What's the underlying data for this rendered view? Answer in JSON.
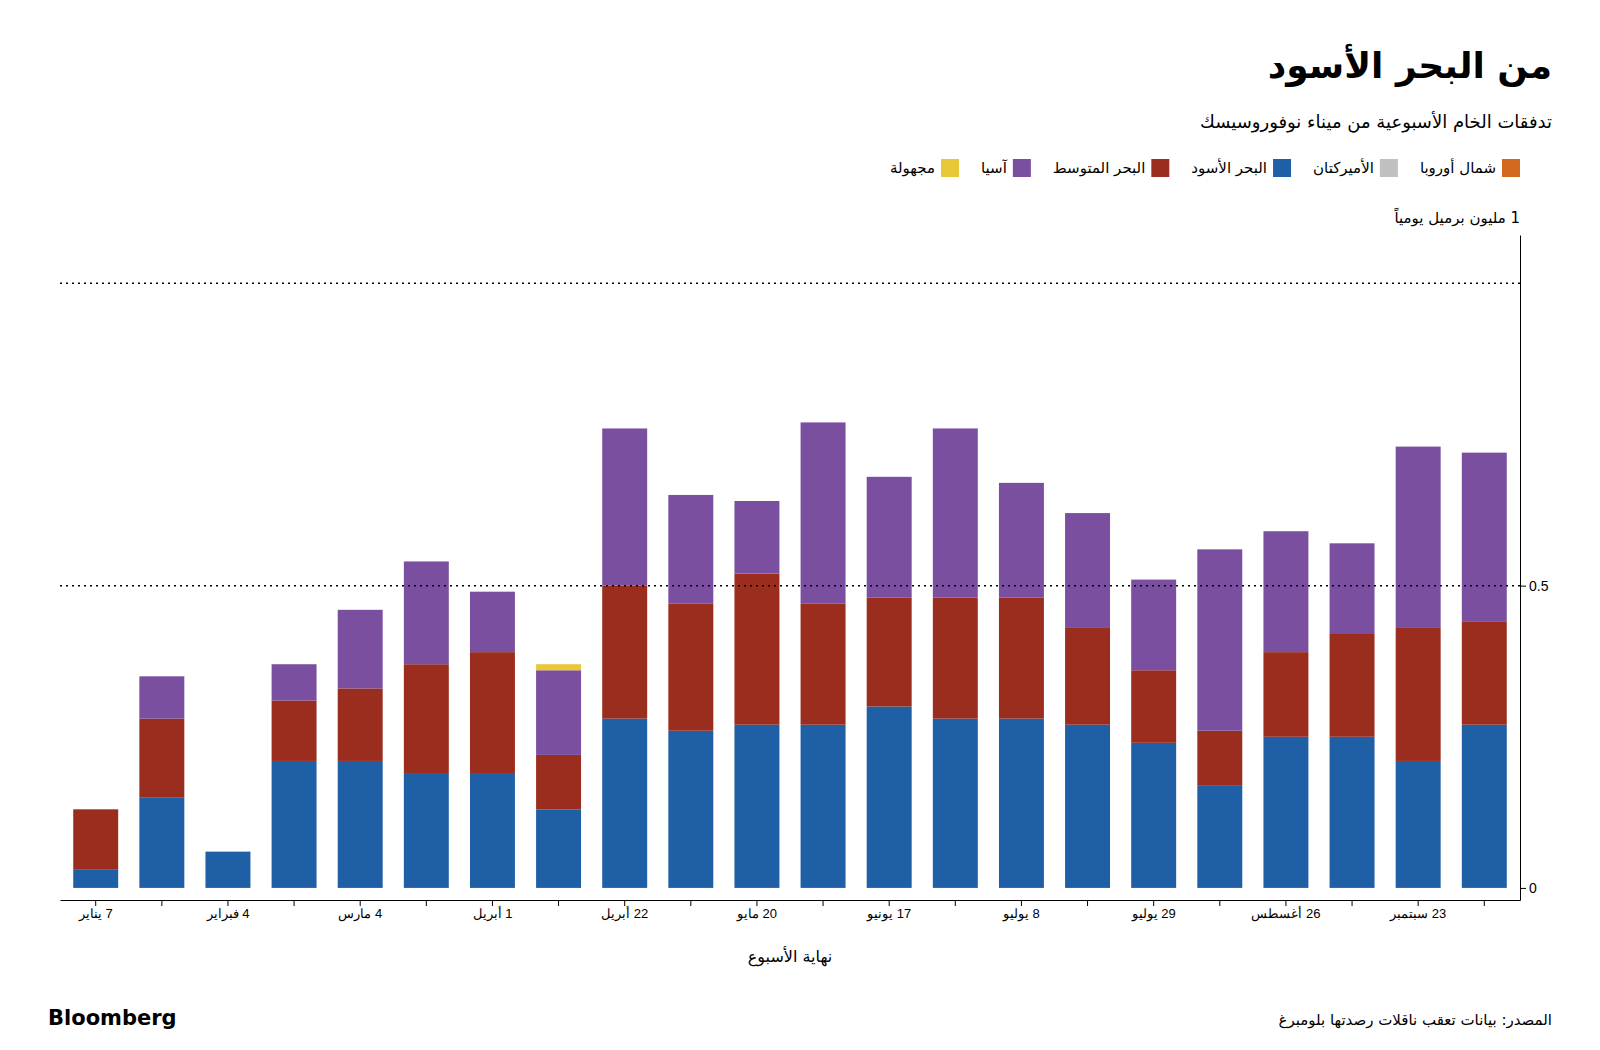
{
  "chart_data": {
    "type": "bar",
    "stacked": true,
    "title": "من البحر الأسود",
    "subtitle": "تدفقات الخام الأسبوعية من ميناء نوفوروسيسك",
    "x_label": "نهاية الأسبوع",
    "y_label": "1 مليون برميل يومياً",
    "annotations": [
      "Bloomberg",
      "المصدر: بيانات تعقب ناقلات رصدتها بلومبرغ"
    ],
    "categories": [
      "7 يناير",
      null,
      "4 فبراير",
      null,
      "4 مارس",
      null,
      "1 أبريل",
      null,
      "22 أبريل",
      null,
      "20 مايو",
      null,
      "17 يونيو",
      null,
      "8 يوليو",
      null,
      "29 يوليو",
      null,
      "26 أغسطس",
      null,
      "23 سبتمبر",
      null
    ],
    "series": [
      {
        "name": "شمال أوروبا",
        "color": "#D2691E",
        "values": [
          0,
          0,
          0,
          0,
          0,
          0,
          0,
          0,
          0,
          0,
          0,
          0,
          0,
          0,
          0,
          0,
          0,
          0,
          0,
          0,
          0,
          0
        ]
      },
      {
        "name": "الأميركتان",
        "color": "#C0C0C0",
        "values": [
          0,
          0,
          0,
          0,
          0,
          0,
          0,
          0,
          0,
          0,
          0,
          0,
          0,
          0,
          0,
          0,
          0,
          0,
          0,
          0,
          0,
          0
        ]
      },
      {
        "name": "البحر الأسود",
        "color": "#1F5FA6",
        "values": [
          0.03,
          0.15,
          0.06,
          0.21,
          0.21,
          0.19,
          0.19,
          0.13,
          0.28,
          0.26,
          0.27,
          0.27,
          0.3,
          0.28,
          0.28,
          0.27,
          0.24,
          0.17,
          0.25,
          0.25,
          0.21,
          0.27
        ]
      },
      {
        "name": "البحر المتوسط",
        "color": "#9B2D1F",
        "values": [
          0.1,
          0.13,
          0.0,
          0.1,
          0.12,
          0.18,
          0.2,
          0.09,
          0.22,
          0.21,
          0.25,
          0.2,
          0.18,
          0.2,
          0.2,
          0.16,
          0.12,
          0.09,
          0.14,
          0.17,
          0.22,
          0.17
        ]
      },
      {
        "name": "آسيا",
        "color": "#7B4FA0",
        "values": [
          0,
          0.07,
          0,
          0.06,
          0.13,
          0.17,
          0.1,
          0.14,
          0.26,
          0.18,
          0.12,
          0.3,
          0.2,
          0.28,
          0.19,
          0.19,
          0.15,
          0.3,
          0.2,
          0.15,
          0.3,
          0.28
        ]
      },
      {
        "name": "مجهولة",
        "color": "#E8C835",
        "values": [
          0,
          0,
          0,
          0,
          0,
          0,
          0,
          0.01,
          0,
          0,
          0,
          0,
          0,
          0,
          0,
          0,
          0,
          0,
          0,
          0,
          0,
          0
        ]
      }
    ],
    "reference_lines": [
      1.0,
      0.5
    ],
    "ylim": [
      -0.02,
      1.08
    ],
    "yticks": [
      0,
      0.5
    ],
    "grid": false,
    "legend": "top-right"
  }
}
